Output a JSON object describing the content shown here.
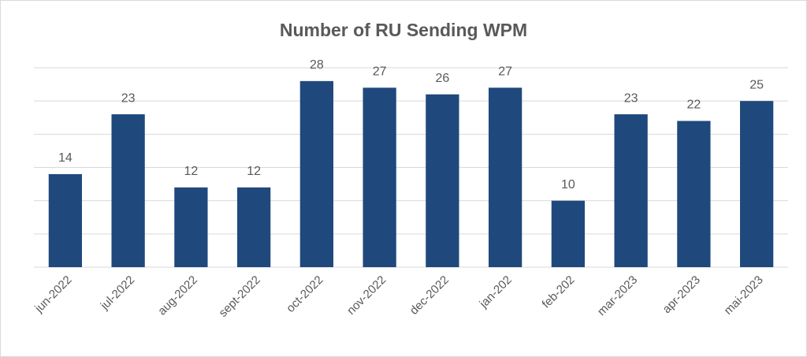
{
  "chart_data": {
    "type": "bar",
    "title": "Number of RU Sending WPM",
    "categories": [
      "jun-2022",
      "jul-2022",
      "aug-2022",
      "sept-2022",
      "oct-2022",
      "nov-2022",
      "dec-2022",
      "jan-202",
      "feb-202",
      "mar-2023",
      "apr-2023",
      "mai-2023"
    ],
    "values": [
      14,
      23,
      12,
      12,
      28,
      27,
      26,
      27,
      10,
      23,
      22,
      25
    ],
    "color": "#1f497d",
    "ylim": [
      0,
      30
    ],
    "yticks": [
      0,
      5,
      10,
      15,
      20,
      25,
      30
    ],
    "grid": true
  }
}
